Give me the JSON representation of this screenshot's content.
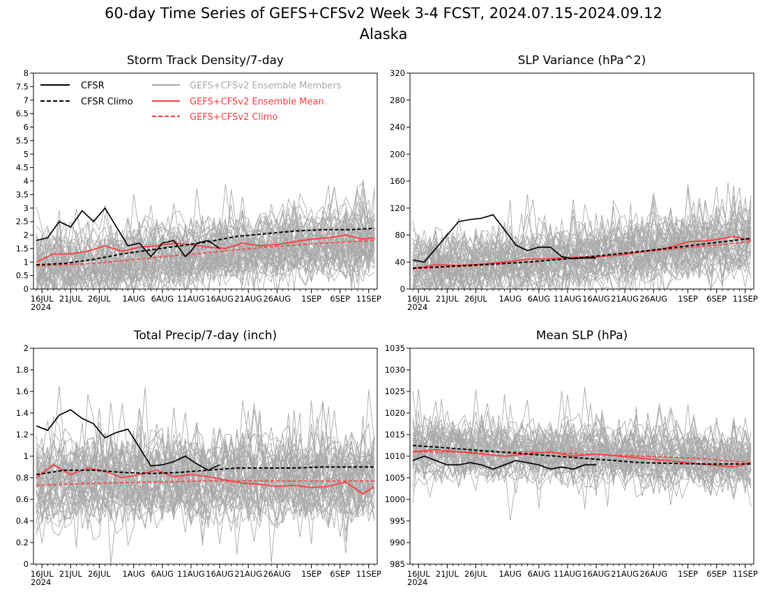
{
  "figure": {
    "title": "60-day Time Series of GEFS+CFSv2 Week 3-4 FCST, 2024.07.15-2024.09.12",
    "subtitle": "Alaska"
  },
  "legend": {
    "cfsr": "CFSR",
    "cfsr_climo": "CFSR Climo",
    "members": "GEFS+CFSv2 Ensemble Members",
    "ens_mean": "GEFS+CFSv2 Ensemble Mean",
    "gefs_climo": "GEFS+CFSv2 Climo"
  },
  "colors": {
    "cfsr": "#000000",
    "members": "#a9a9a9",
    "ens_mean": "#ff3b3b",
    "gefs_climo": "#ff3b3b"
  },
  "x_axis": {
    "ticks": [
      "16JUL",
      "21JUL",
      "26JUL",
      "1AUG",
      "6AUG",
      "11AUG",
      "16AUG",
      "21AUG",
      "26AUG",
      "1SEP",
      "6SEP",
      "11SEP"
    ],
    "tick_days": [
      1,
      6,
      11,
      17,
      22,
      27,
      32,
      37,
      42,
      48,
      53,
      58
    ],
    "year_label": "2024",
    "start_date": "2024-07-15",
    "end_date": "2024-09-12"
  },
  "chart_data": [
    {
      "type": "line",
      "title": "Storm Track Density/7-day",
      "ylim": [
        0,
        8
      ],
      "yticks": [
        "0",
        "0.5",
        "1",
        "1.5",
        "2",
        "2.5",
        "3",
        "3.5",
        "4",
        "4.5",
        "5",
        "5.5",
        "6",
        "6.5",
        "7",
        "7.5",
        "8"
      ],
      "member_range": [
        0.3,
        3.5
      ],
      "series": [
        {
          "name": "CFSR",
          "x_days": [
            0,
            2,
            4,
            6,
            8,
            10,
            12,
            14,
            16,
            18,
            20,
            22,
            24,
            26,
            27,
            28,
            30,
            32
          ],
          "values": [
            1.8,
            1.9,
            2.5,
            2.3,
            2.9,
            2.5,
            3.0,
            2.3,
            1.6,
            1.7,
            1.2,
            1.7,
            1.8,
            1.2,
            1.4,
            1.7,
            1.8,
            1.5
          ]
        },
        {
          "name": "CFSR Climo",
          "x_days": [
            0,
            5,
            10,
            15,
            20,
            25,
            30,
            35,
            40,
            45,
            50,
            55,
            59
          ],
          "values": [
            0.9,
            0.95,
            1.1,
            1.3,
            1.45,
            1.6,
            1.75,
            1.95,
            2.05,
            2.15,
            2.2,
            2.2,
            2.25
          ]
        },
        {
          "name": "GEFS+CFSv2 Ensemble Mean",
          "x_days": [
            0,
            3,
            6,
            9,
            12,
            15,
            18,
            21,
            24,
            27,
            30,
            33,
            36,
            39,
            42,
            45,
            48,
            51,
            54,
            57,
            59
          ],
          "values": [
            1.0,
            1.3,
            1.3,
            1.4,
            1.6,
            1.4,
            1.55,
            1.6,
            1.7,
            1.65,
            1.55,
            1.5,
            1.7,
            1.6,
            1.65,
            1.75,
            1.85,
            1.9,
            2.0,
            1.85,
            1.9
          ]
        },
        {
          "name": "GEFS+CFSv2 Climo",
          "x_days": [
            0,
            10,
            20,
            30,
            40,
            50,
            59
          ],
          "values": [
            0.85,
            0.95,
            1.15,
            1.35,
            1.55,
            1.7,
            1.8
          ]
        }
      ]
    },
    {
      "type": "line",
      "title": "SLP Variance (hPa^2)",
      "ylim": [
        0,
        320
      ],
      "yticks": [
        "0",
        "40",
        "80",
        "120",
        "160",
        "200",
        "240",
        "280",
        "320"
      ],
      "member_range": [
        15,
        140
      ],
      "series": [
        {
          "name": "CFSR",
          "x_days": [
            0,
            2,
            4,
            6,
            8,
            10,
            12,
            14,
            16,
            18,
            20,
            22,
            24,
            26,
            28,
            30,
            32
          ],
          "values": [
            43,
            40,
            60,
            80,
            100,
            103,
            105,
            110,
            88,
            65,
            57,
            62,
            62,
            48,
            45,
            46,
            46
          ]
        },
        {
          "name": "CFSR Climo",
          "x_days": [
            0,
            10,
            20,
            30,
            40,
            50,
            59
          ],
          "values": [
            31,
            35,
            40,
            47,
            56,
            66,
            75
          ]
        },
        {
          "name": "GEFS+CFSv2 Ensemble Mean",
          "x_days": [
            0,
            4,
            8,
            12,
            16,
            20,
            24,
            28,
            32,
            36,
            40,
            44,
            48,
            52,
            56,
            59
          ],
          "values": [
            30,
            36,
            35,
            37,
            40,
            44,
            45,
            47,
            48,
            50,
            55,
            60,
            70,
            72,
            78,
            72
          ]
        },
        {
          "name": "GEFS+CFSv2 Climo",
          "x_days": [
            0,
            10,
            20,
            30,
            40,
            50,
            59
          ],
          "values": [
            30,
            34,
            40,
            47,
            55,
            63,
            70
          ]
        }
      ]
    },
    {
      "type": "line",
      "title": "Total Precip/7-day (inch)",
      "ylim": [
        0,
        2
      ],
      "yticks": [
        "0",
        "0.2",
        "0.4",
        "0.6",
        "0.8",
        "1",
        "1.2",
        "1.4",
        "1.6",
        "1.8",
        "2"
      ],
      "member_range": [
        0.3,
        1.3
      ],
      "series": [
        {
          "name": "CFSR",
          "x_days": [
            0,
            2,
            4,
            6,
            8,
            10,
            12,
            14,
            16,
            18,
            20,
            22,
            24,
            26,
            28,
            30,
            32
          ],
          "values": [
            1.28,
            1.24,
            1.38,
            1.43,
            1.35,
            1.3,
            1.17,
            1.22,
            1.25,
            1.08,
            0.91,
            0.92,
            0.95,
            1.0,
            0.93,
            0.87,
            0.92
          ]
        },
        {
          "name": "CFSR Climo",
          "x_days": [
            0,
            5,
            10,
            15,
            20,
            25,
            30,
            35,
            40,
            45,
            50,
            55,
            59
          ],
          "values": [
            0.83,
            0.87,
            0.87,
            0.85,
            0.84,
            0.85,
            0.87,
            0.89,
            0.89,
            0.89,
            0.9,
            0.9,
            0.9
          ]
        },
        {
          "name": "GEFS+CFSv2 Ensemble Mean",
          "x_days": [
            0,
            3,
            6,
            9,
            12,
            15,
            18,
            21,
            24,
            27,
            30,
            33,
            36,
            39,
            42,
            45,
            48,
            51,
            54,
            57,
            59
          ],
          "values": [
            0.8,
            0.92,
            0.83,
            0.89,
            0.86,
            0.8,
            0.83,
            0.87,
            0.81,
            0.83,
            0.81,
            0.78,
            0.75,
            0.74,
            0.72,
            0.73,
            0.71,
            0.72,
            0.76,
            0.65,
            0.72
          ]
        },
        {
          "name": "GEFS+CFSv2 Climo",
          "x_days": [
            0,
            10,
            20,
            30,
            40,
            50,
            59
          ],
          "values": [
            0.73,
            0.75,
            0.76,
            0.77,
            0.77,
            0.77,
            0.77
          ]
        }
      ]
    },
    {
      "type": "line",
      "title": "Mean SLP (hPa)",
      "ylim": [
        985,
        1035
      ],
      "yticks": [
        "985",
        "990",
        "995",
        "1000",
        "1005",
        "1010",
        "1015",
        "1020",
        "1025",
        "1030",
        "1035"
      ],
      "member_range": [
        1000,
        1018
      ],
      "series": [
        {
          "name": "CFSR",
          "x_days": [
            0,
            2,
            4,
            6,
            8,
            10,
            12,
            14,
            16,
            18,
            20,
            22,
            24,
            26,
            28,
            30,
            32
          ],
          "values": [
            1009,
            1010,
            1009,
            1008,
            1008,
            1008.5,
            1008,
            1007,
            1008,
            1009,
            1008.5,
            1008,
            1007,
            1007.5,
            1007,
            1008,
            1008
          ]
        },
        {
          "name": "CFSR Climo",
          "x_days": [
            0,
            10,
            20,
            30,
            40,
            50,
            59
          ],
          "values": [
            1012.5,
            1011.5,
            1010.5,
            1009.5,
            1008.5,
            1008.2,
            1008.2
          ]
        },
        {
          "name": "GEFS+CFSv2 Ensemble Mean",
          "x_days": [
            0,
            4,
            8,
            12,
            16,
            20,
            24,
            28,
            32,
            36,
            40,
            44,
            48,
            52,
            56,
            59
          ],
          "values": [
            1011,
            1011.5,
            1011,
            1010.5,
            1010,
            1010.5,
            1011,
            1010,
            1010.5,
            1010,
            1009.5,
            1009,
            1008.5,
            1008,
            1007.5,
            1008.5
          ]
        },
        {
          "name": "GEFS+CFSv2 Climo",
          "x_days": [
            0,
            10,
            20,
            30,
            40,
            50,
            59
          ],
          "values": [
            1011,
            1011,
            1011,
            1010.5,
            1010,
            1009.5,
            1008.5
          ]
        }
      ]
    }
  ]
}
